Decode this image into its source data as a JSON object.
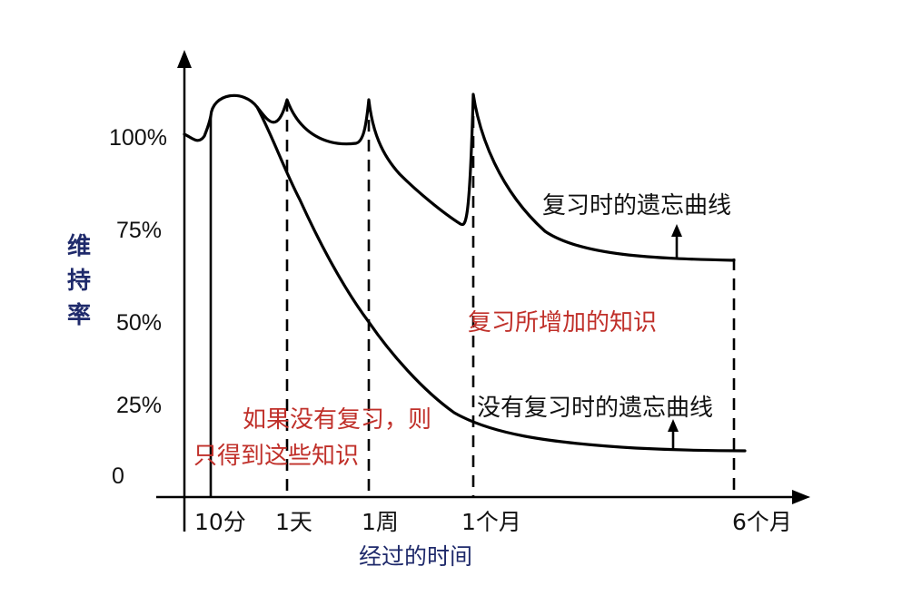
{
  "chart_data": {
    "type": "line",
    "y_ticks": [
      "100%",
      "75%",
      "50%",
      "25%",
      "0"
    ],
    "y_tick_values": [
      100,
      75,
      50,
      25,
      0
    ],
    "ylabel": "维持率",
    "xlabel": "经过的时间",
    "x_ticks": [
      "10分",
      "1天",
      "1周",
      "1个月",
      "6个月"
    ],
    "ylim": [
      0,
      110
    ],
    "grid": false,
    "series": [
      {
        "name": "复习时的遗忘曲线",
        "values": [
          {
            "x": "start",
            "y": 100
          },
          {
            "x": "10分",
            "y": 100
          },
          {
            "x": "10分",
            "y": 110
          },
          {
            "x": "1天",
            "y": 110
          },
          {
            "x": "1周",
            "y": 98
          },
          {
            "x": "1周",
            "y": 110
          },
          {
            "x": "1个月",
            "y": 76
          },
          {
            "x": "1个月",
            "y": 110
          },
          {
            "x": "6个月",
            "y": 67
          }
        ]
      },
      {
        "name": "没有复习时的遗忘曲线",
        "values": [
          {
            "x": "10分",
            "y": 110
          },
          {
            "x": "1天",
            "y": 87
          },
          {
            "x": "1周",
            "y": 48
          },
          {
            "x": "1个月",
            "y": 18
          },
          {
            "x": "6个月",
            "y": 12
          }
        ]
      }
    ],
    "annotations": [
      {
        "text": "复习时的遗忘曲线",
        "color": "#111111"
      },
      {
        "text": "没有复习时的遗忘曲线",
        "color": "#111111"
      },
      {
        "text": "复习所增加的知识",
        "color": "#c0302a"
      },
      {
        "text": "如果没有复习，则",
        "color": "#c0302a"
      },
      {
        "text": "只得到这些知识",
        "color": "#c0302a"
      }
    ]
  }
}
